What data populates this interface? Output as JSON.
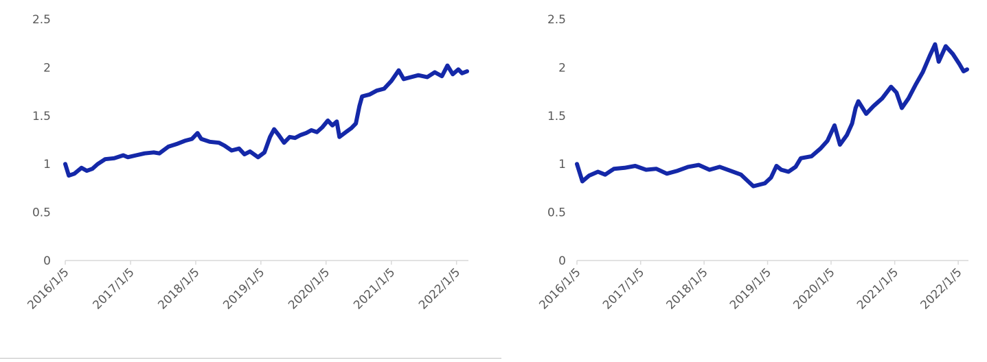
{
  "colors": {
    "series": "#1428a8",
    "axis": "#d9d9d9",
    "text": "#595959"
  },
  "chart_data": [
    {
      "type": "line",
      "title": "",
      "xlabel": "",
      "ylabel": "",
      "ylim": [
        0,
        2.5
      ],
      "yticks": [
        "0",
        "0.5",
        "1",
        "1.5",
        "2",
        "2.5"
      ],
      "xticks": [
        "2016/1/5",
        "2017/1/5",
        "2018/1/5",
        "2019/1/5",
        "2020/1/5",
        "2021/1/5",
        "2022/1/5"
      ],
      "xrange": [
        "2016-01-05",
        "2022-03-05"
      ],
      "grid": false,
      "series": [
        {
          "values": [
            [
              "2016-01-05",
              1.0
            ],
            [
              "2016-01-25",
              0.88
            ],
            [
              "2016-02-25",
              0.9
            ],
            [
              "2016-04-05",
              0.96
            ],
            [
              "2016-05-05",
              0.93
            ],
            [
              "2016-06-05",
              0.95
            ],
            [
              "2016-07-05",
              1.0
            ],
            [
              "2016-08-15",
              1.05
            ],
            [
              "2016-10-05",
              1.06
            ],
            [
              "2016-11-25",
              1.09
            ],
            [
              "2016-12-20",
              1.07
            ],
            [
              "2017-02-05",
              1.09
            ],
            [
              "2017-03-25",
              1.11
            ],
            [
              "2017-05-15",
              1.12
            ],
            [
              "2017-06-15",
              1.11
            ],
            [
              "2017-08-05",
              1.18
            ],
            [
              "2017-09-25",
              1.21
            ],
            [
              "2017-11-05",
              1.24
            ],
            [
              "2017-12-15",
              1.26
            ],
            [
              "2018-01-15",
              1.32
            ],
            [
              "2018-02-05",
              1.26
            ],
            [
              "2018-03-25",
              1.23
            ],
            [
              "2018-05-15",
              1.22
            ],
            [
              "2018-06-15",
              1.19
            ],
            [
              "2018-07-25",
              1.14
            ],
            [
              "2018-09-05",
              1.16
            ],
            [
              "2018-10-05",
              1.1
            ],
            [
              "2018-11-05",
              1.13
            ],
            [
              "2018-12-20",
              1.07
            ],
            [
              "2019-01-25",
              1.12
            ],
            [
              "2019-02-25",
              1.28
            ],
            [
              "2019-03-20",
              1.36
            ],
            [
              "2019-04-15",
              1.3
            ],
            [
              "2019-05-15",
              1.22
            ],
            [
              "2019-06-15",
              1.28
            ],
            [
              "2019-07-15",
              1.27
            ],
            [
              "2019-08-15",
              1.3
            ],
            [
              "2019-09-15",
              1.32
            ],
            [
              "2019-10-15",
              1.35
            ],
            [
              "2019-11-15",
              1.33
            ],
            [
              "2019-12-15",
              1.38
            ],
            [
              "2020-01-15",
              1.45
            ],
            [
              "2020-02-10",
              1.4
            ],
            [
              "2020-03-05",
              1.44
            ],
            [
              "2020-03-20",
              1.28
            ],
            [
              "2020-04-25",
              1.33
            ],
            [
              "2020-05-25",
              1.37
            ],
            [
              "2020-06-20",
              1.42
            ],
            [
              "2020-07-10",
              1.6
            ],
            [
              "2020-07-25",
              1.7
            ],
            [
              "2020-09-05",
              1.72
            ],
            [
              "2020-10-15",
              1.76
            ],
            [
              "2020-11-25",
              1.78
            ],
            [
              "2021-01-05",
              1.86
            ],
            [
              "2021-02-15",
              1.97
            ],
            [
              "2021-03-15",
              1.88
            ],
            [
              "2021-04-25",
              1.9
            ],
            [
              "2021-06-05",
              1.92
            ],
            [
              "2021-07-25",
              1.9
            ],
            [
              "2021-09-05",
              1.95
            ],
            [
              "2021-10-15",
              1.91
            ],
            [
              "2021-11-15",
              2.02
            ],
            [
              "2021-12-15",
              1.93
            ],
            [
              "2022-01-15",
              1.98
            ],
            [
              "2022-02-05",
              1.94
            ],
            [
              "2022-03-05",
              1.96
            ]
          ]
        }
      ]
    },
    {
      "type": "line",
      "title": "",
      "xlabel": "",
      "ylabel": "",
      "ylim": [
        0,
        2.5
      ],
      "yticks": [
        "0",
        "0.5",
        "1",
        "1.5",
        "2",
        "2.5"
      ],
      "xticks": [
        "2016/1/5",
        "2017/1/5",
        "2018/1/5",
        "2019/1/5",
        "2020/1/5",
        "2021/1/5",
        "2022/1/5"
      ],
      "xrange": [
        "2016-01-05",
        "2022-02-25"
      ],
      "grid": false,
      "series": [
        {
          "values": [
            [
              "2016-01-05",
              1.0
            ],
            [
              "2016-02-05",
              0.82
            ],
            [
              "2016-03-15",
              0.88
            ],
            [
              "2016-05-05",
              0.92
            ],
            [
              "2016-06-15",
              0.89
            ],
            [
              "2016-08-05",
              0.95
            ],
            [
              "2016-10-05",
              0.96
            ],
            [
              "2016-12-05",
              0.98
            ],
            [
              "2017-02-05",
              0.94
            ],
            [
              "2017-04-05",
              0.95
            ],
            [
              "2017-06-05",
              0.9
            ],
            [
              "2017-08-05",
              0.93
            ],
            [
              "2017-10-05",
              0.97
            ],
            [
              "2017-12-05",
              0.99
            ],
            [
              "2018-02-05",
              0.94
            ],
            [
              "2018-04-05",
              0.97
            ],
            [
              "2018-06-05",
              0.93
            ],
            [
              "2018-08-05",
              0.89
            ],
            [
              "2018-09-15",
              0.82
            ],
            [
              "2018-10-15",
              0.77
            ],
            [
              "2018-12-20",
              0.8
            ],
            [
              "2019-01-25",
              0.86
            ],
            [
              "2019-02-25",
              0.98
            ],
            [
              "2019-03-25",
              0.94
            ],
            [
              "2019-05-05",
              0.92
            ],
            [
              "2019-06-15",
              0.97
            ],
            [
              "2019-07-15",
              1.06
            ],
            [
              "2019-09-15",
              1.08
            ],
            [
              "2019-11-05",
              1.16
            ],
            [
              "2019-12-15",
              1.24
            ],
            [
              "2020-01-25",
              1.4
            ],
            [
              "2020-02-25",
              1.2
            ],
            [
              "2020-04-05",
              1.3
            ],
            [
              "2020-05-05",
              1.42
            ],
            [
              "2020-05-25",
              1.58
            ],
            [
              "2020-06-10",
              1.65
            ],
            [
              "2020-07-25",
              1.52
            ],
            [
              "2020-09-05",
              1.6
            ],
            [
              "2020-10-25",
              1.68
            ],
            [
              "2020-12-15",
              1.8
            ],
            [
              "2021-01-15",
              1.74
            ],
            [
              "2021-02-15",
              1.58
            ],
            [
              "2021-03-25",
              1.68
            ],
            [
              "2021-05-05",
              1.82
            ],
            [
              "2021-06-15",
              1.95
            ],
            [
              "2021-07-25",
              2.12
            ],
            [
              "2021-08-25",
              2.24
            ],
            [
              "2021-09-15",
              2.06
            ],
            [
              "2021-10-25",
              2.22
            ],
            [
              "2021-12-05",
              2.14
            ],
            [
              "2022-01-10",
              2.04
            ],
            [
              "2022-02-05",
              1.96
            ],
            [
              "2022-02-25",
              1.98
            ]
          ]
        }
      ]
    }
  ]
}
